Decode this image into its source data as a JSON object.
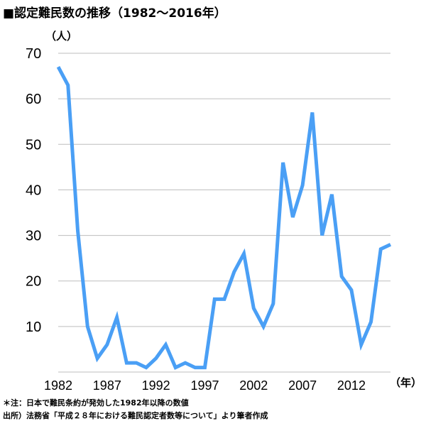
{
  "title": "■認定難民数の推移（1982〜2016年）",
  "y_unit_label": "（人）",
  "x_unit_label": "（年）",
  "notes": {
    "note1": "＊注：日本で難民条約が発効した1982年以降の数値",
    "note2": "出所）法務省「平成２８年における難民認定者数等について」より筆者作成"
  },
  "colors": {
    "line": "#4a9ff5",
    "grid": "#bdbdbd"
  },
  "chart_data": {
    "type": "line",
    "title": "■認定難民数の推移（1982〜2016年）",
    "xlabel": "（年）",
    "ylabel": "（人）",
    "ylim": [
      0,
      70
    ],
    "xlim": [
      1982,
      2016
    ],
    "y_ticks": [
      "10",
      "20",
      "30",
      "40",
      "50",
      "60",
      "70"
    ],
    "x_ticks": [
      "1982",
      "1987",
      "1992",
      "1997",
      "2002",
      "2007",
      "2012"
    ],
    "grid": true,
    "x": [
      1982,
      1983,
      1984,
      1985,
      1986,
      1987,
      1988,
      1989,
      1990,
      1991,
      1992,
      1993,
      1994,
      1995,
      1996,
      1997,
      1998,
      1999,
      2000,
      2001,
      2002,
      2003,
      2004,
      2005,
      2006,
      2007,
      2008,
      2009,
      2010,
      2011,
      2012,
      2013,
      2014,
      2015,
      2016
    ],
    "series": [
      {
        "values": [
          67,
          63,
          31,
          10,
          3,
          6,
          12,
          2,
          2,
          1,
          3,
          6,
          1,
          2,
          1,
          1,
          16,
          16,
          22,
          26,
          14,
          10,
          15,
          46,
          34,
          41,
          57,
          30,
          39,
          21,
          18,
          6,
          11,
          27,
          28
        ]
      }
    ]
  }
}
